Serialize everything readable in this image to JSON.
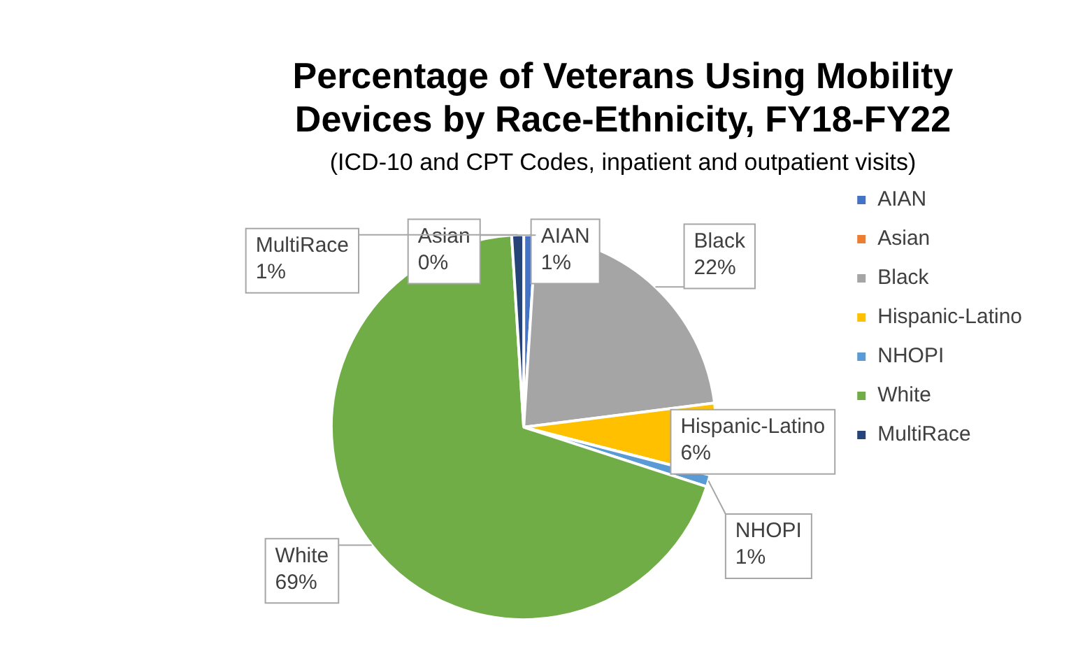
{
  "chart_data": {
    "type": "pie",
    "title": "Percentage of Veterans Using Mobility Devices by Race-Ethnicity, FY18-FY22",
    "subtitle": "(ICD-10 and CPT Codes, inpatient and outpatient visits)",
    "categories": [
      "AIAN",
      "Asian",
      "Black",
      "Hispanic-Latino",
      "NHOPI",
      "White",
      "MultiRace"
    ],
    "values": [
      1,
      0,
      22,
      6,
      1,
      69,
      1
    ],
    "value_labels": [
      "1%",
      "0%",
      "22%",
      "6%",
      "1%",
      "69%",
      "1%"
    ],
    "colors": [
      "#4472c4",
      "#ed7d31",
      "#a5a5a5",
      "#ffc000",
      "#5b9bd5",
      "#70ad47",
      "#264478"
    ],
    "legend": "right"
  }
}
